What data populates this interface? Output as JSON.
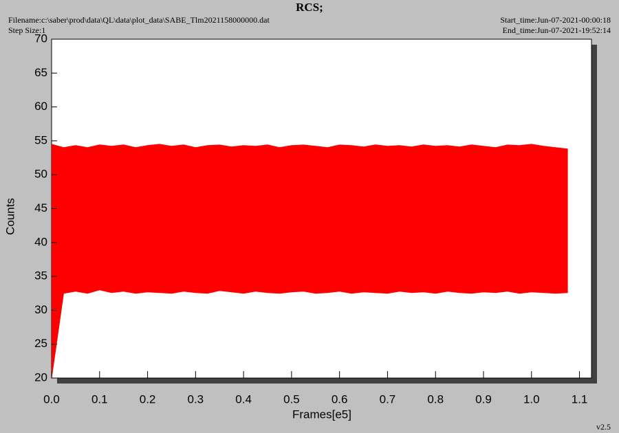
{
  "chart_data": {
    "type": "band",
    "title": "RCS;",
    "filename": "Filename:c:\\saber\\prod\\data\\QL\\data\\plot_data\\SABE_Tlm2021158000000.dat",
    "step_size": "Step Size:1",
    "start_time": "Start_time:Jun-07-2021-00:00:18",
    "end_time": "End_time:Jun-07-2021-19:52:14",
    "version": "v2.5",
    "xlabel": "Frames[e5]",
    "ylabel": "Counts",
    "xlim": [
      0,
      1.125
    ],
    "ylim": [
      20,
      70
    ],
    "xticks": [
      {
        "value": 0,
        "label": "0.0"
      },
      0.1,
      0.2,
      0.3,
      0.4,
      0.5,
      0.6,
      0.7,
      0.8,
      0.9,
      {
        "value": 1,
        "label": "1.0"
      },
      1.1
    ],
    "yticks": [
      20,
      25,
      30,
      35,
      40,
      45,
      50,
      55,
      60,
      65,
      70
    ],
    "x": [
      0,
      0.025,
      0.05,
      0.075,
      0.1,
      0.125,
      0.15,
      0.175,
      0.2,
      0.225,
      0.25,
      0.275,
      0.3,
      0.325,
      0.35,
      0.375,
      0.4,
      0.425,
      0.45,
      0.475,
      0.5,
      0.525,
      0.55,
      0.575,
      0.6,
      0.625,
      0.65,
      0.675,
      0.7,
      0.725,
      0.75,
      0.775,
      0.8,
      0.825,
      0.85,
      0.875,
      0.9,
      0.925,
      0.95,
      0.975,
      1,
      1.025,
      1.05,
      1.075
    ],
    "series": [
      {
        "color": "#ff0000",
        "high": [
          54.5,
          54,
          54.3,
          54,
          54.4,
          54.2,
          54.4,
          54,
          54.3,
          54.5,
          54.2,
          54.4,
          54,
          54.3,
          54.4,
          54.1,
          54.3,
          54.2,
          54.4,
          54,
          54.3,
          54.4,
          54.2,
          54,
          54.4,
          54.3,
          54.1,
          54.4,
          54.2,
          54.3,
          54.1,
          54.4,
          54.2,
          54.3,
          54.1,
          54.4,
          54.2,
          54,
          54.4,
          54.3,
          54.5,
          54.2,
          54,
          53.8
        ],
        "low": [
          20,
          32.5,
          32.8,
          32.5,
          33,
          32.6,
          32.8,
          32.5,
          32.7,
          32.6,
          32.5,
          32.8,
          32.6,
          32.5,
          32.9,
          32.7,
          32.5,
          32.8,
          32.6,
          32.5,
          32.7,
          32.8,
          32.5,
          32.6,
          32.8,
          32.5,
          32.7,
          32.6,
          32.5,
          32.8,
          32.6,
          32.7,
          32.5,
          32.8,
          32.6,
          32.5,
          32.7,
          32.6,
          32.8,
          32.5,
          32.7,
          32.6,
          32.5,
          32.6
        ]
      }
    ]
  }
}
